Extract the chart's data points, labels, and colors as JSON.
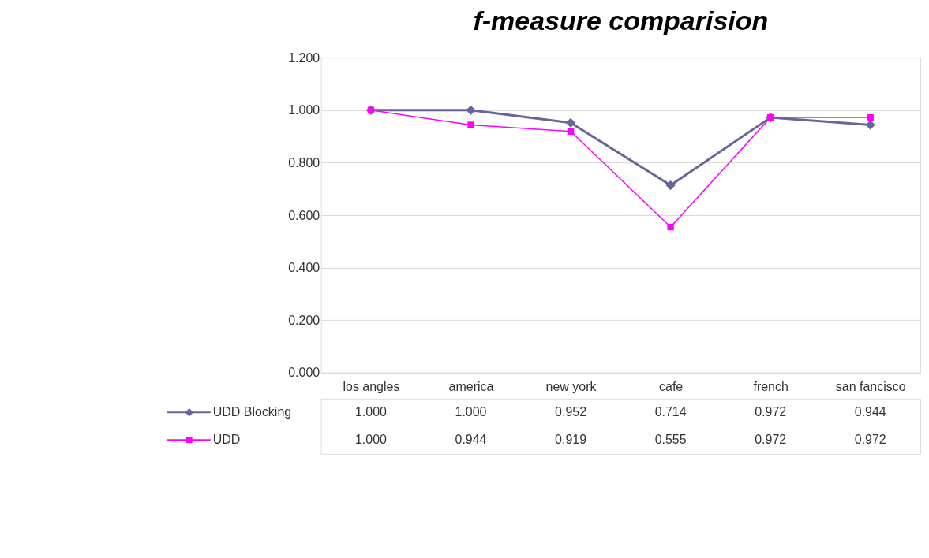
{
  "chart_data": {
    "type": "line",
    "title": "f-measure comparision",
    "categories": [
      "los angles",
      "america",
      "new york",
      "cafe",
      "french",
      "san fancisco"
    ],
    "series": [
      {
        "name": "UDD Blocking",
        "color": "#666699",
        "marker": "diamond",
        "values": [
          1.0,
          1.0,
          0.952,
          0.714,
          0.972,
          0.944
        ],
        "value_labels": [
          "1.000",
          "1.000",
          "0.952",
          "0.714",
          "0.972",
          "0.944"
        ]
      },
      {
        "name": "UDD",
        "color": "#ff00ff",
        "marker": "square",
        "values": [
          1.0,
          0.944,
          0.919,
          0.555,
          0.972,
          0.972
        ],
        "value_labels": [
          "1.000",
          "0.944",
          "0.919",
          "0.555",
          "0.972",
          "0.972"
        ]
      }
    ],
    "ylim": [
      0,
      1.2
    ],
    "yticks": [
      {
        "value": 0,
        "label": "0.000"
      },
      {
        "value": 0.2,
        "label": "0.200"
      },
      {
        "value": 0.4,
        "label": "0.400"
      },
      {
        "value": 0.6,
        "label": "0.600"
      },
      {
        "value": 0.8,
        "label": "0.800"
      },
      {
        "value": 1.0,
        "label": "1.000"
      },
      {
        "value": 1.2,
        "label": "1.200"
      }
    ],
    "grid": "y",
    "legend": "bottom"
  }
}
